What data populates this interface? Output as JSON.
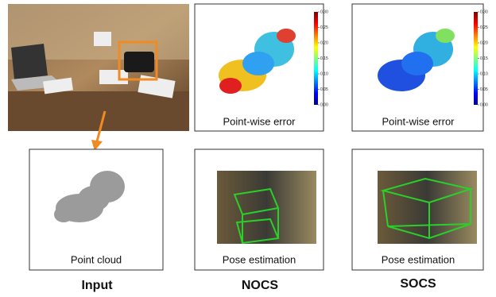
{
  "nocs": {
    "error_caption": "Point-wise error",
    "pose_caption": "Pose estimation",
    "label": "NOCS",
    "colorbar_lim": [
      0,
      0.3
    ],
    "colorbar_ticks": [
      {
        "value": 0.3,
        "label": "0.30"
      },
      {
        "value": 0.25,
        "label": "0.25"
      },
      {
        "value": 0.2,
        "label": "0.20"
      },
      {
        "value": 0.15,
        "label": "0.15"
      },
      {
        "value": 0.1,
        "label": "0.10"
      },
      {
        "value": 0.05,
        "label": "0.05"
      },
      {
        "value": 0,
        "label": "0.00"
      }
    ]
  },
  "socs": {
    "error_caption": "Point-wise error",
    "pose_caption": "Pose estimation",
    "label": "SOCS",
    "colorbar_lim": [
      0,
      0.3
    ],
    "colorbar_ticks": [
      {
        "value": 0.3,
        "label": "0.30"
      },
      {
        "value": 0.25,
        "label": "0.25"
      },
      {
        "value": 0.2,
        "label": "0.20"
      },
      {
        "value": 0.15,
        "label": "0.15"
      },
      {
        "value": 0.1,
        "label": "0.10"
      },
      {
        "value": 0.05,
        "label": "0.05"
      },
      {
        "value": 0,
        "label": "0.00"
      }
    ]
  },
  "input": {
    "cloud_caption": "Point cloud",
    "label": "Input"
  }
}
